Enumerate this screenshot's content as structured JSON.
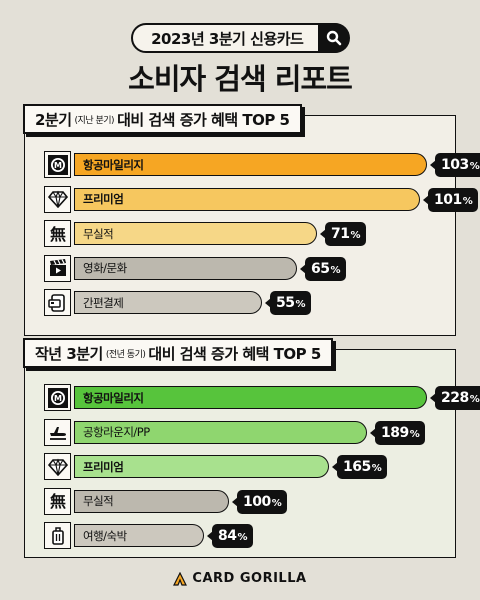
{
  "header": {
    "search_text": "2023년 3분기 신용카드",
    "title": "소비자 검색 리포트"
  },
  "chart_data": [
    {
      "type": "bar",
      "title_main": "2분기",
      "title_sub": "(지난 분기)",
      "title_rest": "대비 검색 증가 혜택 TOP 5",
      "unit": "%",
      "categories": [
        "항공마일리지",
        "프리미엄",
        "무실적",
        "영화/문화",
        "간편결제"
      ],
      "values": [
        103,
        101,
        71,
        65,
        55
      ],
      "icons": [
        "mileage-m-icon",
        "diamond-icon",
        "no-kanji-icon",
        "clapperboard-icon",
        "card-phone-icon"
      ],
      "colors": [
        "#f6a623",
        "#f6c75f",
        "#f6d787",
        "#bcb8ae",
        "#ccc8be"
      ],
      "bold": [
        true,
        true,
        false,
        false,
        false
      ]
    },
    {
      "type": "bar",
      "title_main": "작년 3분기",
      "title_sub": "(전년 동기)",
      "title_rest": "대비 검색 증가 혜택 TOP 5",
      "unit": "%",
      "categories": [
        "항공마일리지",
        "공항라운지/PP",
        "프리미엄",
        "무실적",
        "여행/숙박"
      ],
      "values": [
        228,
        189,
        165,
        100,
        84
      ],
      "icons": [
        "mileage-m-icon",
        "airplane-icon",
        "diamond-icon",
        "no-kanji-icon",
        "suitcase-icon"
      ],
      "colors": [
        "#57c43c",
        "#8fd66f",
        "#a8e18e",
        "#bcb8ae",
        "#ccc8be"
      ],
      "bold": [
        true,
        false,
        true,
        false,
        false
      ]
    }
  ],
  "footer": {
    "brand": "CARD GORILLA"
  }
}
